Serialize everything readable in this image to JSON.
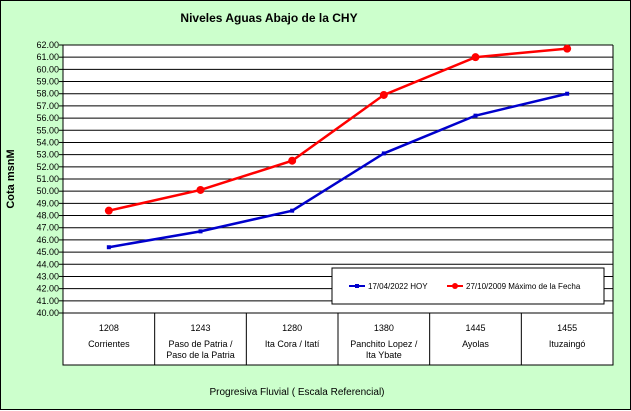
{
  "chart_data": {
    "type": "line",
    "title": "Niveles Aguas Abajo de la CHY",
    "ylabel": "Cota msnM",
    "xlabel": "Progresiva Fluvial ( Escala Referencial)",
    "ylim": [
      40,
      62
    ],
    "ytick_step": 1,
    "categories": [
      {
        "code": "1208",
        "name": [
          "Corrientes"
        ]
      },
      {
        "code": "1243",
        "name": [
          "Paso de Patria /",
          "Paso de la Patria"
        ]
      },
      {
        "code": "1280",
        "name": [
          "Ita Cora / Itatí"
        ]
      },
      {
        "code": "1380",
        "name": [
          "Panchito Lopez /",
          "Ita Ybate"
        ]
      },
      {
        "code": "1445",
        "name": [
          "Ayolas"
        ]
      },
      {
        "code": "1455",
        "name": [
          "Ituzaingó"
        ]
      }
    ],
    "series": [
      {
        "name": "17/04/2022 HOY",
        "color": "#0000CC",
        "marker": "square",
        "values": [
          45.4,
          46.7,
          48.4,
          53.1,
          56.2,
          58.0
        ]
      },
      {
        "name": "27/10/2009 Máximo de la Fecha",
        "color": "#FF0000",
        "marker": "circle",
        "values": [
          48.4,
          50.1,
          52.5,
          57.9,
          61.0,
          61.7
        ]
      }
    ],
    "grid": true,
    "legend_position": "bottom-right"
  }
}
